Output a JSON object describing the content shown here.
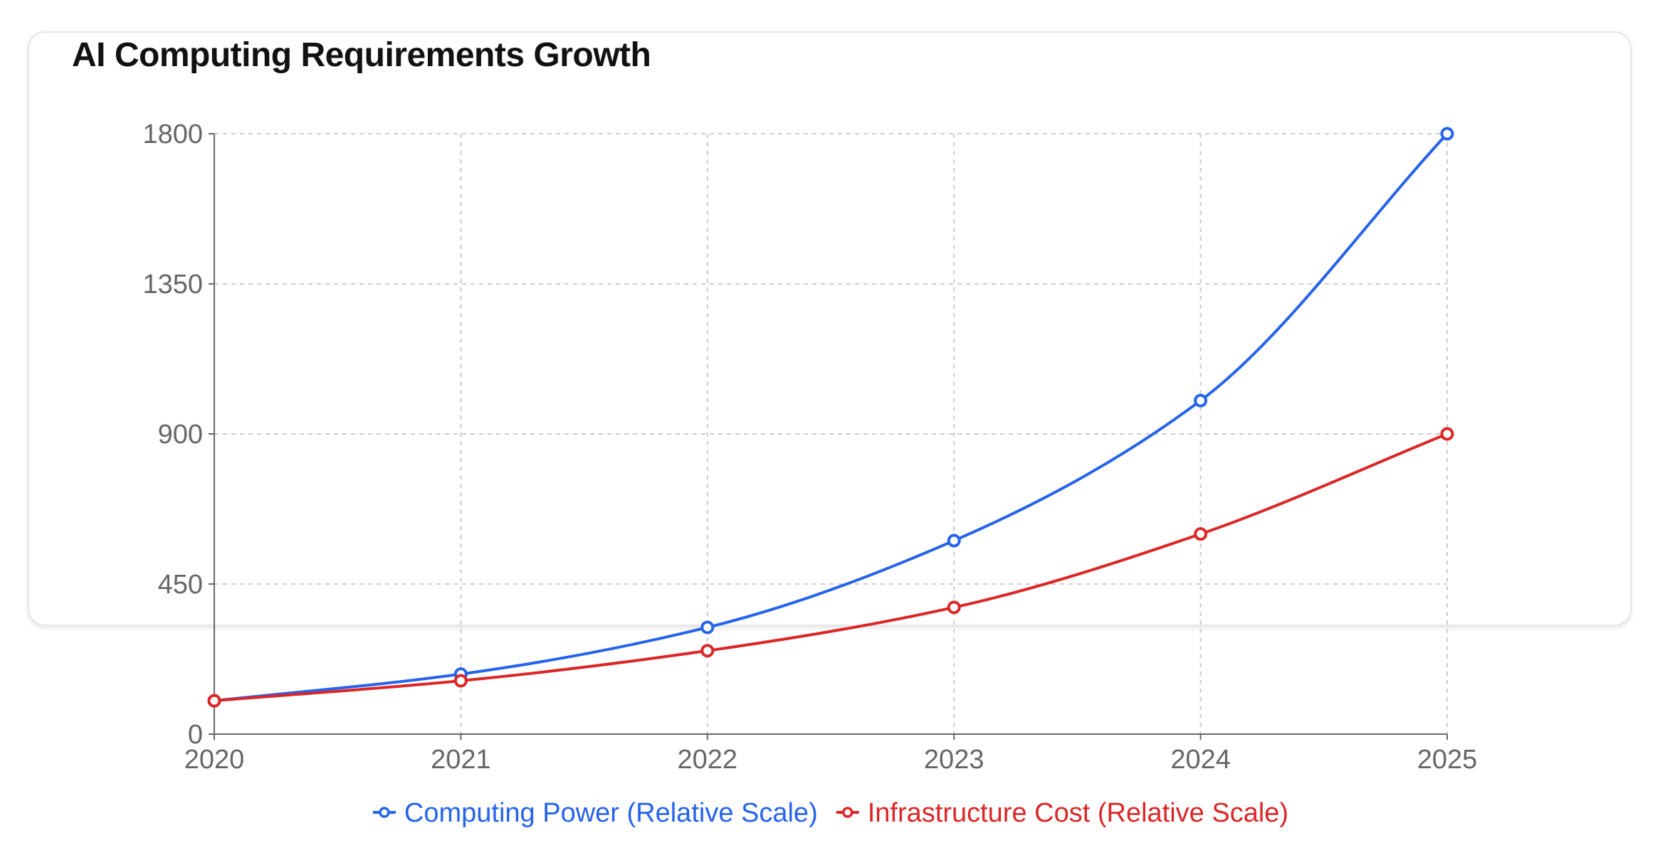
{
  "chart_data": {
    "type": "line",
    "title": "AI Computing Requirements Growth",
    "x": [
      "2020",
      "2021",
      "2022",
      "2023",
      "2024",
      "2025"
    ],
    "xlabel": "",
    "ylabel": "",
    "ylim": [
      0,
      1800
    ],
    "yticks": [
      0,
      450,
      900,
      1350,
      1800
    ],
    "grid": true,
    "curve": "smooth",
    "legend_position": "bottom",
    "series": [
      {
        "name": "Computing Power (Relative Scale)",
        "color": "#2563eb",
        "values": [
          100,
          180,
          320,
          580,
          1000,
          1800
        ]
      },
      {
        "name": "Infrastructure Cost (Relative Scale)",
        "color": "#dc2626",
        "values": [
          100,
          160,
          250,
          380,
          600,
          900
        ]
      }
    ]
  }
}
